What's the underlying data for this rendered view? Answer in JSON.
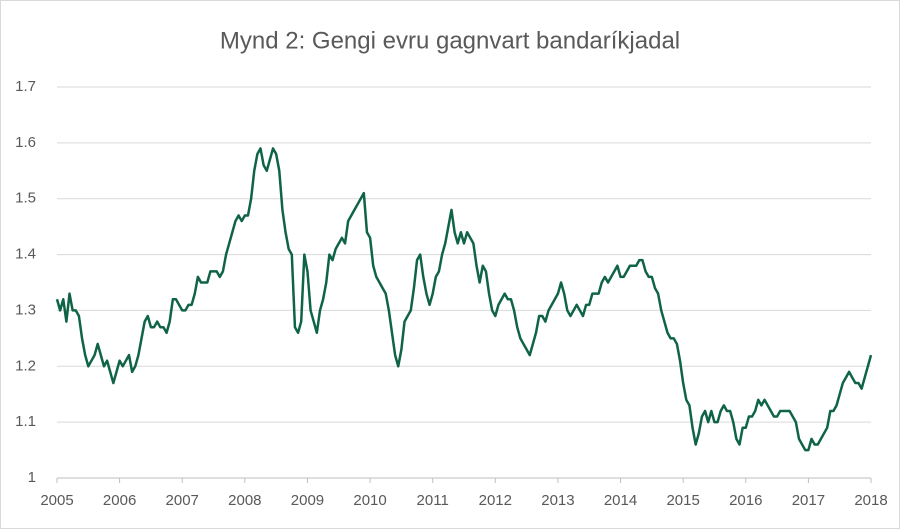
{
  "chart_data": {
    "type": "line",
    "title": "Mynd 2: Gengi evru gagnvart bandaríkjadal",
    "x": [
      2005,
      2005.05,
      2005.1,
      2005.15,
      2005.2,
      2005.25,
      2005.3,
      2005.35,
      2005.4,
      2005.45,
      2005.5,
      2005.55,
      2005.6,
      2005.65,
      2005.7,
      2005.75,
      2005.8,
      2005.85,
      2005.9,
      2005.95,
      2006,
      2006.05,
      2006.1,
      2006.15,
      2006.2,
      2006.25,
      2006.3,
      2006.35,
      2006.4,
      2006.45,
      2006.5,
      2006.55,
      2006.6,
      2006.65,
      2006.7,
      2006.75,
      2006.8,
      2006.85,
      2006.9,
      2006.95,
      2007,
      2007.05,
      2007.1,
      2007.15,
      2007.2,
      2007.25,
      2007.3,
      2007.35,
      2007.4,
      2007.45,
      2007.5,
      2007.55,
      2007.6,
      2007.65,
      2007.7,
      2007.75,
      2007.8,
      2007.85,
      2007.9,
      2007.95,
      2008,
      2008.05,
      2008.1,
      2008.15,
      2008.2,
      2008.25,
      2008.3,
      2008.35,
      2008.4,
      2008.45,
      2008.5,
      2008.55,
      2008.6,
      2008.65,
      2008.7,
      2008.75,
      2008.8,
      2008.85,
      2008.9,
      2008.95,
      2009,
      2009.05,
      2009.1,
      2009.15,
      2009.2,
      2009.25,
      2009.3,
      2009.35,
      2009.4,
      2009.45,
      2009.5,
      2009.55,
      2009.6,
      2009.65,
      2009.7,
      2009.75,
      2009.8,
      2009.85,
      2009.9,
      2009.95,
      2010,
      2010.05,
      2010.1,
      2010.15,
      2010.2,
      2010.25,
      2010.3,
      2010.35,
      2010.4,
      2010.45,
      2010.5,
      2010.55,
      2010.6,
      2010.65,
      2010.7,
      2010.75,
      2010.8,
      2010.85,
      2010.9,
      2010.95,
      2011,
      2011.05,
      2011.1,
      2011.15,
      2011.2,
      2011.25,
      2011.3,
      2011.35,
      2011.4,
      2011.45,
      2011.5,
      2011.55,
      2011.6,
      2011.65,
      2011.7,
      2011.75,
      2011.8,
      2011.85,
      2011.9,
      2011.95,
      2012,
      2012.05,
      2012.1,
      2012.15,
      2012.2,
      2012.25,
      2012.3,
      2012.35,
      2012.4,
      2012.45,
      2012.5,
      2012.55,
      2012.6,
      2012.65,
      2012.7,
      2012.75,
      2012.8,
      2012.85,
      2012.9,
      2012.95,
      2013,
      2013.05,
      2013.1,
      2013.15,
      2013.2,
      2013.25,
      2013.3,
      2013.35,
      2013.4,
      2013.45,
      2013.5,
      2013.55,
      2013.6,
      2013.65,
      2013.7,
      2013.75,
      2013.8,
      2013.85,
      2013.9,
      2013.95,
      2014,
      2014.05,
      2014.1,
      2014.15,
      2014.2,
      2014.25,
      2014.3,
      2014.35,
      2014.4,
      2014.45,
      2014.5,
      2014.55,
      2014.6,
      2014.65,
      2014.7,
      2014.75,
      2014.8,
      2014.85,
      2014.9,
      2014.95,
      2015,
      2015.05,
      2015.1,
      2015.15,
      2015.2,
      2015.25,
      2015.3,
      2015.35,
      2015.4,
      2015.45,
      2015.5,
      2015.55,
      2015.6,
      2015.65,
      2015.7,
      2015.75,
      2015.8,
      2015.85,
      2015.9,
      2015.95,
      2016,
      2016.05,
      2016.1,
      2016.15,
      2016.2,
      2016.25,
      2016.3,
      2016.35,
      2016.4,
      2016.45,
      2016.5,
      2016.55,
      2016.6,
      2016.65,
      2016.7,
      2016.75,
      2016.8,
      2016.85,
      2016.9,
      2016.95,
      2017,
      2017.05,
      2017.1,
      2017.15,
      2017.2,
      2017.25,
      2017.3,
      2017.35,
      2017.4,
      2017.45,
      2017.5,
      2017.55,
      2017.6,
      2017.65,
      2017.7,
      2017.75,
      2017.8,
      2017.85,
      2017.9,
      2017.95,
      2018
    ],
    "series": [
      {
        "color": "#0f6446",
        "values": [
          1.32,
          1.3,
          1.32,
          1.28,
          1.33,
          1.3,
          1.3,
          1.29,
          1.25,
          1.22,
          1.2,
          1.21,
          1.22,
          1.24,
          1.22,
          1.2,
          1.21,
          1.19,
          1.17,
          1.19,
          1.21,
          1.2,
          1.21,
          1.22,
          1.19,
          1.2,
          1.22,
          1.25,
          1.28,
          1.29,
          1.27,
          1.27,
          1.28,
          1.27,
          1.27,
          1.26,
          1.28,
          1.32,
          1.32,
          1.31,
          1.3,
          1.3,
          1.31,
          1.31,
          1.33,
          1.36,
          1.35,
          1.35,
          1.35,
          1.37,
          1.37,
          1.37,
          1.36,
          1.37,
          1.4,
          1.42,
          1.44,
          1.46,
          1.47,
          1.46,
          1.47,
          1.47,
          1.5,
          1.55,
          1.58,
          1.59,
          1.56,
          1.55,
          1.57,
          1.59,
          1.58,
          1.55,
          1.48,
          1.44,
          1.41,
          1.4,
          1.27,
          1.26,
          1.28,
          1.4,
          1.37,
          1.3,
          1.28,
          1.26,
          1.3,
          1.32,
          1.35,
          1.4,
          1.39,
          1.41,
          1.42,
          1.43,
          1.42,
          1.46,
          1.47,
          1.48,
          1.49,
          1.5,
          1.51,
          1.44,
          1.43,
          1.38,
          1.36,
          1.35,
          1.34,
          1.33,
          1.3,
          1.26,
          1.22,
          1.2,
          1.23,
          1.28,
          1.29,
          1.3,
          1.34,
          1.39,
          1.4,
          1.36,
          1.33,
          1.31,
          1.33,
          1.36,
          1.37,
          1.4,
          1.42,
          1.45,
          1.48,
          1.44,
          1.42,
          1.44,
          1.42,
          1.44,
          1.43,
          1.42,
          1.38,
          1.35,
          1.38,
          1.37,
          1.33,
          1.3,
          1.29,
          1.31,
          1.32,
          1.33,
          1.32,
          1.32,
          1.3,
          1.27,
          1.25,
          1.24,
          1.23,
          1.22,
          1.24,
          1.26,
          1.29,
          1.29,
          1.28,
          1.3,
          1.31,
          1.32,
          1.33,
          1.35,
          1.33,
          1.3,
          1.29,
          1.3,
          1.31,
          1.3,
          1.29,
          1.31,
          1.31,
          1.33,
          1.33,
          1.33,
          1.35,
          1.36,
          1.35,
          1.36,
          1.37,
          1.38,
          1.36,
          1.36,
          1.37,
          1.38,
          1.38,
          1.38,
          1.39,
          1.39,
          1.37,
          1.36,
          1.36,
          1.34,
          1.33,
          1.3,
          1.28,
          1.26,
          1.25,
          1.25,
          1.24,
          1.21,
          1.17,
          1.14,
          1.13,
          1.09,
          1.06,
          1.08,
          1.11,
          1.12,
          1.1,
          1.12,
          1.1,
          1.1,
          1.12,
          1.13,
          1.12,
          1.12,
          1.1,
          1.07,
          1.06,
          1.09,
          1.09,
          1.11,
          1.11,
          1.12,
          1.14,
          1.13,
          1.14,
          1.13,
          1.12,
          1.11,
          1.11,
          1.12,
          1.12,
          1.12,
          1.12,
          1.11,
          1.1,
          1.07,
          1.06,
          1.05,
          1.05,
          1.07,
          1.06,
          1.06,
          1.07,
          1.08,
          1.09,
          1.12,
          1.12,
          1.13,
          1.15,
          1.17,
          1.18,
          1.19,
          1.18,
          1.17,
          1.17,
          1.16,
          1.18,
          1.2,
          1.22
        ]
      }
    ],
    "xlim": [
      2005,
      2018
    ],
    "xticks": [
      2005,
      2006,
      2007,
      2008,
      2009,
      2010,
      2011,
      2012,
      2013,
      2014,
      2015,
      2016,
      2017,
      2018
    ],
    "ylim": [
      1,
      1.7
    ],
    "yticks": [
      1,
      1.1,
      1.2,
      1.3,
      1.4,
      1.5,
      1.6,
      1.7
    ],
    "grid": true
  }
}
